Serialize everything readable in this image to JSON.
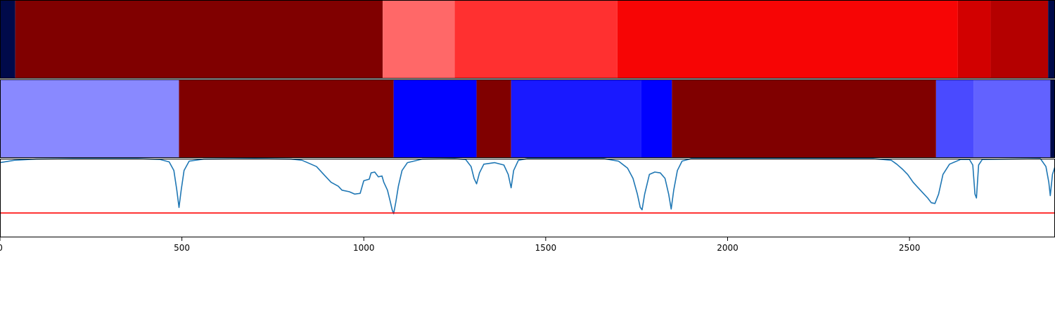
{
  "chart_data": [
    {
      "type": "heatmap",
      "xlim": [
        0,
        2900
      ],
      "segments": [
        {
          "start": 0,
          "end": 42,
          "color": "#000a4a"
        },
        {
          "start": 42,
          "end": 1052,
          "color": "#800000"
        },
        {
          "start": 1052,
          "end": 1250,
          "color": "#ff6868"
        },
        {
          "start": 1250,
          "end": 1697,
          "color": "#ff3030"
        },
        {
          "start": 1697,
          "end": 2633,
          "color": "#f70505"
        },
        {
          "start": 2633,
          "end": 2723,
          "color": "#d20000"
        },
        {
          "start": 2723,
          "end": 2881,
          "color": "#b40000"
        },
        {
          "start": 2881,
          "end": 2900,
          "color": "#000a4a"
        }
      ]
    },
    {
      "type": "heatmap",
      "xlim": [
        0,
        2900
      ],
      "segments": [
        {
          "start": 0,
          "end": 492,
          "color": "#8989ff"
        },
        {
          "start": 492,
          "end": 1082,
          "color": "#800000"
        },
        {
          "start": 1082,
          "end": 1310,
          "color": "#0000ff"
        },
        {
          "start": 1310,
          "end": 1405,
          "color": "#800000"
        },
        {
          "start": 1405,
          "end": 1762,
          "color": "#1919ff"
        },
        {
          "start": 1762,
          "end": 1847,
          "color": "#0000ff"
        },
        {
          "start": 1847,
          "end": 2573,
          "color": "#800000"
        },
        {
          "start": 2573,
          "end": 2677,
          "color": "#4a4aff"
        },
        {
          "start": 2677,
          "end": 2887,
          "color": "#6262ff"
        },
        {
          "start": 2887,
          "end": 2900,
          "color": "#000a4a"
        }
      ]
    },
    {
      "type": "line",
      "xlim": [
        0,
        2900
      ],
      "ylim": [
        0,
        1
      ],
      "series": [
        {
          "color": "#1f77b4",
          "points": [
            [
              0,
              0.95
            ],
            [
              40,
              0.98
            ],
            [
              100,
              0.995
            ],
            [
              200,
              1.0
            ],
            [
              380,
              1.0
            ],
            [
              440,
              0.99
            ],
            [
              465,
              0.96
            ],
            [
              478,
              0.85
            ],
            [
              486,
              0.6
            ],
            [
              492,
              0.38
            ],
            [
              498,
              0.6
            ],
            [
              506,
              0.85
            ],
            [
              520,
              0.97
            ],
            [
              560,
              0.995
            ],
            [
              700,
              1.0
            ],
            [
              800,
              0.995
            ],
            [
              830,
              0.98
            ],
            [
              850,
              0.94
            ],
            [
              870,
              0.9
            ],
            [
              890,
              0.8
            ],
            [
              910,
              0.7
            ],
            [
              930,
              0.65
            ],
            [
              940,
              0.6
            ],
            [
              960,
              0.58
            ],
            [
              975,
              0.55
            ],
            [
              990,
              0.56
            ],
            [
              1000,
              0.72
            ],
            [
              1015,
              0.74
            ],
            [
              1020,
              0.82
            ],
            [
              1030,
              0.83
            ],
            [
              1040,
              0.77
            ],
            [
              1050,
              0.78
            ],
            [
              1055,
              0.7
            ],
            [
              1065,
              0.6
            ],
            [
              1073,
              0.45
            ],
            [
              1078,
              0.35
            ],
            [
              1082,
              0.3
            ],
            [
              1088,
              0.45
            ],
            [
              1095,
              0.65
            ],
            [
              1105,
              0.85
            ],
            [
              1120,
              0.95
            ],
            [
              1160,
              0.995
            ],
            [
              1250,
              1.0
            ],
            [
              1280,
              0.99
            ],
            [
              1295,
              0.9
            ],
            [
              1303,
              0.75
            ],
            [
              1310,
              0.68
            ],
            [
              1318,
              0.82
            ],
            [
              1330,
              0.93
            ],
            [
              1360,
              0.95
            ],
            [
              1385,
              0.92
            ],
            [
              1397,
              0.8
            ],
            [
              1405,
              0.63
            ],
            [
              1412,
              0.85
            ],
            [
              1425,
              0.98
            ],
            [
              1450,
              1.0
            ],
            [
              1660,
              1.0
            ],
            [
              1700,
              0.97
            ],
            [
              1725,
              0.88
            ],
            [
              1740,
              0.75
            ],
            [
              1752,
              0.55
            ],
            [
              1760,
              0.38
            ],
            [
              1765,
              0.35
            ],
            [
              1772,
              0.55
            ],
            [
              1785,
              0.8
            ],
            [
              1800,
              0.83
            ],
            [
              1815,
              0.82
            ],
            [
              1828,
              0.75
            ],
            [
              1838,
              0.55
            ],
            [
              1845,
              0.36
            ],
            [
              1852,
              0.6
            ],
            [
              1862,
              0.85
            ],
            [
              1875,
              0.97
            ],
            [
              1900,
              1.0
            ],
            [
              2400,
              1.0
            ],
            [
              2450,
              0.98
            ],
            [
              2465,
              0.93
            ],
            [
              2480,
              0.87
            ],
            [
              2495,
              0.8
            ],
            [
              2510,
              0.7
            ],
            [
              2520,
              0.65
            ],
            [
              2530,
              0.6
            ],
            [
              2540,
              0.55
            ],
            [
              2550,
              0.5
            ],
            [
              2560,
              0.44
            ],
            [
              2570,
              0.43
            ],
            [
              2580,
              0.55
            ],
            [
              2592,
              0.8
            ],
            [
              2610,
              0.93
            ],
            [
              2640,
              0.99
            ],
            [
              2665,
              0.99
            ],
            [
              2674,
              0.92
            ],
            [
              2680,
              0.55
            ],
            [
              2684,
              0.5
            ],
            [
              2690,
              0.92
            ],
            [
              2700,
              0.99
            ],
            [
              2860,
              1.0
            ],
            [
              2875,
              0.9
            ],
            [
              2883,
              0.7
            ],
            [
              2887,
              0.53
            ],
            [
              2893,
              0.8
            ],
            [
              2900,
              0.9
            ]
          ]
        }
      ],
      "threshold": {
        "value": 0.31,
        "color": "#ff0000"
      },
      "xticks": [
        0,
        500,
        1000,
        1500,
        2000,
        2500
      ],
      "xtick_labels": [
        "0",
        "500",
        "1000",
        "1500",
        "2000",
        "2500"
      ]
    }
  ]
}
